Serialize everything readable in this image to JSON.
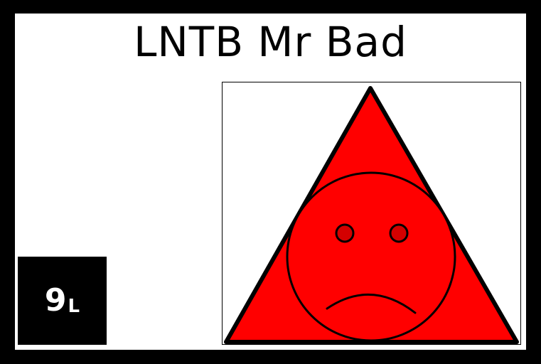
{
  "card": {
    "title": "LNTB Mr Bad",
    "badge": {
      "number": "9",
      "letter": "L"
    },
    "picture": {
      "shape": "triangle",
      "expression": "sad",
      "fill_color": "#ff0000",
      "eye_color": "#d40000",
      "outline_color": "#000000"
    }
  }
}
